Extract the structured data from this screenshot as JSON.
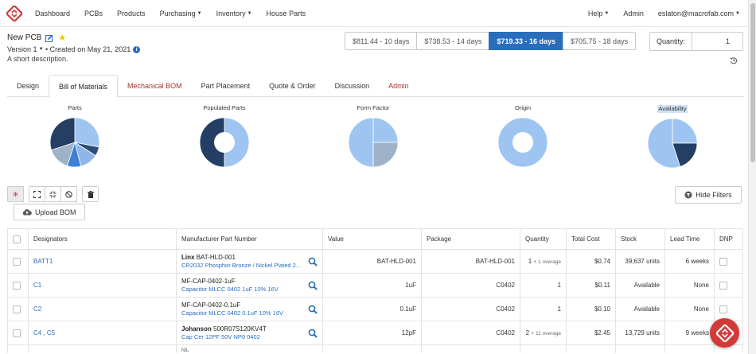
{
  "nav": {
    "items": [
      {
        "label": "Dashboard"
      },
      {
        "label": "PCBs"
      },
      {
        "label": "Products"
      },
      {
        "label": "Purchasing",
        "dropdown": true
      },
      {
        "label": "Inventory",
        "dropdown": true
      },
      {
        "label": "House Parts"
      }
    ],
    "help": "Help",
    "admin": "Admin",
    "user": "eslaton@macrofab.com"
  },
  "project": {
    "name": "New PCB",
    "version_label": "Version",
    "version": "1",
    "created": "• Created on May 21, 2021",
    "description": "A short description."
  },
  "pricing": [
    {
      "label": "$811.44 - 10 days",
      "active": false
    },
    {
      "label": "$738.53 - 14 days",
      "active": false
    },
    {
      "label": "$719.33 - 16 days",
      "active": true
    },
    {
      "label": "$705.75 - 18 days",
      "active": false
    }
  ],
  "quantity": {
    "label": "Quantity:",
    "value": "1"
  },
  "tabs": [
    {
      "label": "Design",
      "style": "normal"
    },
    {
      "label": "Bill of Materials",
      "style": "active"
    },
    {
      "label": "Mechanical BOM",
      "style": "red"
    },
    {
      "label": "Part Placement",
      "style": "normal"
    },
    {
      "label": "Quote & Order",
      "style": "normal"
    },
    {
      "label": "Discussion",
      "style": "normal"
    },
    {
      "label": "Admin",
      "style": "red"
    }
  ],
  "chart_data": [
    {
      "type": "pie",
      "title": "Parts",
      "slices": [
        {
          "value": 0.28,
          "color": "#9ec5f2"
        },
        {
          "value": 0.06,
          "color": "#2b4e7a"
        },
        {
          "value": 0.12,
          "color": "#8eb6e6"
        },
        {
          "value": 0.09,
          "color": "#3f7fd6"
        },
        {
          "value": 0.15,
          "color": "#9fb3c8"
        },
        {
          "value": 0.3,
          "color": "#243f63"
        }
      ]
    },
    {
      "type": "pie",
      "title": "Populated Parts",
      "donut": true,
      "slices": [
        {
          "value": 0.5,
          "color": "#9ec5f2"
        },
        {
          "value": 0.5,
          "color": "#243f63"
        }
      ]
    },
    {
      "type": "pie",
      "title": "Form Factor",
      "slices": [
        {
          "value": 0.25,
          "color": "#9ec5f2"
        },
        {
          "value": 0.25,
          "color": "#9fb3c8"
        },
        {
          "value": 0.5,
          "color": "#9ec5f2"
        }
      ]
    },
    {
      "type": "pie",
      "title": "Origin",
      "donut": true,
      "slices": [
        {
          "value": 1.0,
          "color": "#9ec5f2"
        }
      ]
    },
    {
      "type": "pie",
      "title": "Availability",
      "highlight": true,
      "slices": [
        {
          "value": 0.25,
          "color": "#9ec5f2"
        },
        {
          "value": 0.2,
          "color": "#243f63"
        },
        {
          "value": 0.55,
          "color": "#9ec5f2"
        }
      ]
    }
  ],
  "toolbar": {
    "upload_label": "Upload BOM",
    "hide_filters_label": "Hide Filters"
  },
  "table": {
    "headers": [
      "Designators",
      "Manufacturer Part Number",
      "Value",
      "Package",
      "Quantity",
      "Total Cost",
      "Stock",
      "Lead Time",
      "DNP"
    ],
    "rows": [
      {
        "designators": "BATT1",
        "mfr": "Linx",
        "mpn": "BAT-HLD-001",
        "desc": "CR2032 Phosphor Bronze / Nickel Plated 2...",
        "value": "BAT-HLD-001",
        "package": "BAT-HLD-001",
        "qty": "1",
        "qty_extra": "+ 1 overage",
        "cost": "$0.74",
        "stock": "39,637 units",
        "lead": "6 weeks"
      },
      {
        "designators": "C1",
        "mfr": "",
        "mpn": "MF-CAP-0402-1uF",
        "desc": "Capacitor MLCC 0402 1uF 10% 16V",
        "value": "1uF",
        "package": "C0402",
        "qty": "1",
        "qty_extra": "",
        "cost": "$0.11",
        "stock": "Available",
        "lead": "None"
      },
      {
        "designators": "C2",
        "mfr": "",
        "mpn": "MF-CAP-0402-0.1uF",
        "desc": "Capacitor MLCC 0402 0.1uF 10% 16V",
        "value": "0.1uF",
        "package": "C0402",
        "qty": "1",
        "qty_extra": "",
        "cost": "$0.10",
        "stock": "Available",
        "lead": "None"
      },
      {
        "designators": "C4 , C5",
        "mfr": "Johanson",
        "mpn": "500R07S120KV4T",
        "desc": "Cap Cer 12PF 50V NP0 0402",
        "value": "12pF",
        "package": "C0402",
        "qty": "2",
        "qty_extra": "+ 11 overage",
        "cost": "$2.45",
        "stock": "13,729 units",
        "lead": "9 weeks"
      }
    ],
    "partial_row_text": "NIL"
  }
}
